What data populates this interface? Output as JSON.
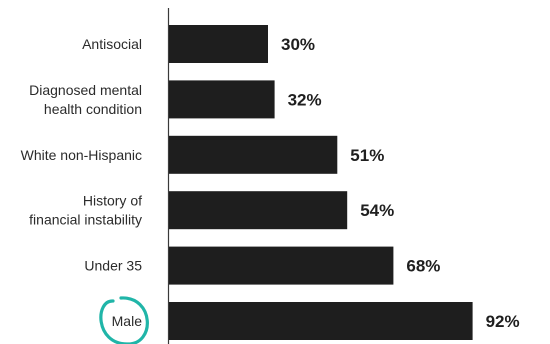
{
  "chart_data": {
    "type": "bar",
    "orientation": "horizontal",
    "categories": [
      [
        "Antisocial"
      ],
      [
        "Diagnosed mental",
        "health condition"
      ],
      [
        "White non-Hispanic"
      ],
      [
        "History of",
        "financial instability"
      ],
      [
        "Under 35"
      ],
      [
        "Male"
      ]
    ],
    "values": [
      30,
      32,
      51,
      54,
      68,
      92
    ],
    "value_labels": [
      "30%",
      "32%",
      "51%",
      "54%",
      "68%",
      "92%"
    ],
    "xlim": [
      0,
      100
    ],
    "grid": false,
    "bar_color": "#1e1e1e",
    "highlight": {
      "category_index": 5,
      "shape": "circle",
      "color": "#20b5a8"
    }
  }
}
